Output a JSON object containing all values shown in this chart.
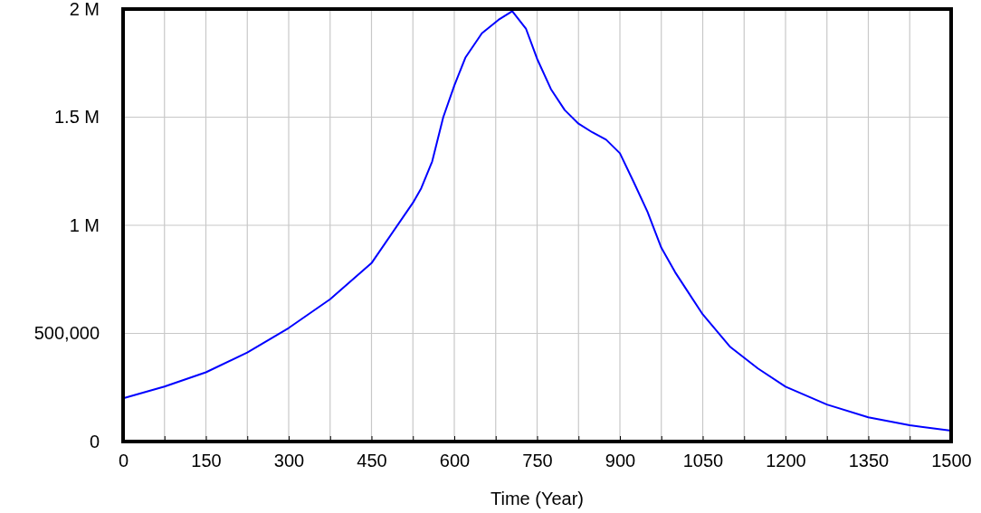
{
  "chart_data": {
    "type": "line",
    "xlabel": "Time (Year)",
    "xlim": [
      0,
      1500
    ],
    "xticks": [
      0,
      {
        "value": 75,
        "label": null
      },
      150,
      {
        "value": 225,
        "label": null
      },
      300,
      {
        "value": 375,
        "label": null
      },
      450,
      {
        "value": 525,
        "label": null
      },
      600,
      {
        "value": 675,
        "label": null
      },
      750,
      {
        "value": 825,
        "label": null
      },
      900,
      {
        "value": 975,
        "label": null
      },
      1050,
      {
        "value": 1125,
        "label": null
      },
      1200,
      {
        "value": 1275,
        "label": null
      },
      1350,
      {
        "value": 1425,
        "label": null
      },
      1500
    ],
    "ylim": [
      0,
      2000000
    ],
    "yticks": [
      {
        "value": 0,
        "label": "0"
      },
      {
        "value": 500000,
        "label": "500,000"
      },
      {
        "value": 1000000,
        "label": "1 M"
      },
      {
        "value": 1500000,
        "label": "1.5 M"
      },
      {
        "value": 2000000,
        "label": "2 M"
      }
    ],
    "grid": true,
    "marker": "none",
    "line_style": "solid",
    "x": [
      0,
      75,
      150,
      225,
      300,
      375,
      450,
      525,
      540,
      560,
      580,
      600,
      620,
      650,
      680,
      705,
      730,
      750,
      775,
      800,
      825,
      850,
      875,
      900,
      925,
      950,
      975,
      1000,
      1050,
      1100,
      1150,
      1200,
      1275,
      1350,
      1425,
      1500
    ],
    "series": [
      {
        "color": "#0000ff",
        "values": [
          200000,
          254000,
          320000,
          412000,
          525000,
          658000,
          825000,
          1104000,
          1171000,
          1296000,
          1500000,
          1646000,
          1775000,
          1888000,
          1950000,
          1990000,
          1908000,
          1770000,
          1630000,
          1533000,
          1470000,
          1430000,
          1396000,
          1333000,
          1200000,
          1062000,
          896000,
          783000,
          588000,
          437000,
          338000,
          254000,
          171000,
          112000,
          75000,
          50000
        ]
      }
    ]
  }
}
